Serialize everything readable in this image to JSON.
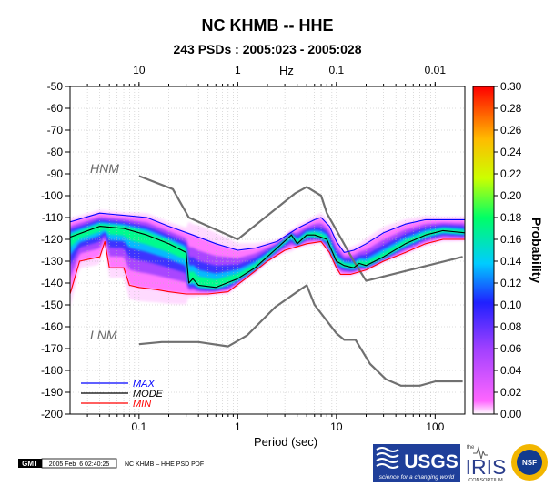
{
  "chart_data": {
    "type": "heatmap",
    "title": "NC KHMB -- HHE",
    "subtitle": "243 PSDs : 2005:023 - 2005:028",
    "xlabel": "Period (sec)",
    "x2label": "Hz",
    "ylabel": "",
    "colorbar_label": "Probability",
    "x_scale": "log",
    "xlim": [
      0.02,
      200
    ],
    "ylim": [
      -200,
      -50
    ],
    "x_ticks": [
      0.1,
      1,
      10,
      100
    ],
    "x_tick_labels": [
      "0.1",
      "1",
      "10",
      "100"
    ],
    "x2_ticks": [
      10,
      1,
      0.1,
      0.01
    ],
    "x2_tick_labels": [
      "10",
      "1",
      "0.1",
      "0.01"
    ],
    "y_ticks": [
      -50,
      -60,
      -70,
      -80,
      -90,
      -100,
      -110,
      -120,
      -130,
      -140,
      -150,
      -160,
      -170,
      -180,
      -190,
      -200
    ],
    "y_tick_labels": [
      "-50",
      "-60",
      "-70",
      "-80",
      "-90",
      "-100",
      "-110",
      "-120",
      "-130",
      "-140",
      "-150",
      "-160",
      "-170",
      "-180",
      "-190",
      "-200"
    ],
    "colorbar_range": [
      0,
      0.3
    ],
    "colorbar_ticks": [
      "0.00",
      "0.02",
      "0.04",
      "0.06",
      "0.08",
      "0.10",
      "0.12",
      "0.14",
      "0.16",
      "0.18",
      "0.20",
      "0.22",
      "0.24",
      "0.26",
      "0.28",
      "0.30"
    ],
    "series": [
      {
        "name": "MAX",
        "color": "#0000ff",
        "x": [
          0.02,
          0.04,
          0.07,
          0.12,
          0.2,
          0.35,
          0.6,
          1,
          1.5,
          2.5,
          4,
          6,
          7,
          8.5,
          10,
          12,
          15,
          20,
          30,
          50,
          80,
          120,
          200
        ],
        "y": [
          -112,
          -108,
          -109,
          -110,
          -114,
          -118,
          -122,
          -125,
          -124,
          -121,
          -115,
          -111,
          -110,
          -114,
          -121,
          -126,
          -125,
          -122,
          -117,
          -113,
          -111,
          -111,
          -111
        ]
      },
      {
        "name": "MODE",
        "color": "#000000",
        "x": [
          0.02,
          0.04,
          0.07,
          0.12,
          0.2,
          0.3,
          0.32,
          0.35,
          0.4,
          0.6,
          1,
          1.5,
          2.5,
          3.5,
          4,
          5,
          6,
          7,
          8,
          10,
          12,
          15,
          17,
          20,
          30,
          50,
          80,
          120,
          200
        ],
        "y": [
          -119,
          -114,
          -115,
          -118,
          -122,
          -126,
          -140,
          -138,
          -141,
          -142,
          -138,
          -133,
          -124,
          -118,
          -122,
          -118,
          -118,
          -119,
          -120,
          -130,
          -132,
          -133,
          -131,
          -132,
          -128,
          -122,
          -118,
          -116,
          -117
        ]
      },
      {
        "name": "MIN",
        "color": "#ff0000",
        "x": [
          0.02,
          0.025,
          0.04,
          0.045,
          0.05,
          0.07,
          0.08,
          0.1,
          0.15,
          0.2,
          0.3,
          0.5,
          0.8,
          1.2,
          2,
          3,
          5,
          7,
          8.5,
          10,
          11,
          14,
          20,
          30,
          50,
          80,
          120,
          200
        ],
        "y": [
          -145,
          -130,
          -128,
          -121,
          -133,
          -133,
          -141,
          -142,
          -143,
          -144,
          -145,
          -145,
          -144,
          -138,
          -130,
          -125,
          -122,
          -121,
          -126,
          -133,
          -136,
          -136,
          -134,
          -130,
          -126,
          -122,
          -120,
          -120
        ]
      },
      {
        "name": "HNM",
        "color": "#707070",
        "x": [
          0.1,
          0.22,
          0.32,
          1,
          3.8,
          5,
          7,
          8,
          15,
          20,
          190
        ],
        "y": [
          -91,
          -97,
          -110,
          -120,
          -99,
          -96,
          -100,
          -108,
          -130,
          -139,
          -128
        ]
      },
      {
        "name": "LNM",
        "color": "#707070",
        "x": [
          0.1,
          0.17,
          0.4,
          0.8,
          1.24,
          2.4,
          4.3,
          5,
          6,
          10,
          12,
          15.6,
          21.9,
          31.6,
          45,
          70,
          101,
          154,
          190
        ],
        "y": [
          -168,
          -167,
          -167,
          -169,
          -164,
          -151,
          -143,
          -141,
          -150,
          -163,
          -166,
          -166,
          -177,
          -184,
          -187,
          -187,
          -185,
          -185,
          -185
        ]
      }
    ],
    "annotations": [
      "HNM",
      "LNM"
    ],
    "legend_position": "bottom-left"
  },
  "footer": {
    "gmt_badge": "GMT",
    "timestamp": "2005 Feb  6 02:40:25",
    "caption": "NC KHMB – HHE PSD PDF",
    "usgs_logo": "USGS",
    "usgs_tagline": "science for a changing world",
    "iris_prefix": "the",
    "iris_logo": "IRIS",
    "iris_sub": "CONSORTIUM",
    "nsf_logo": "NSF"
  }
}
